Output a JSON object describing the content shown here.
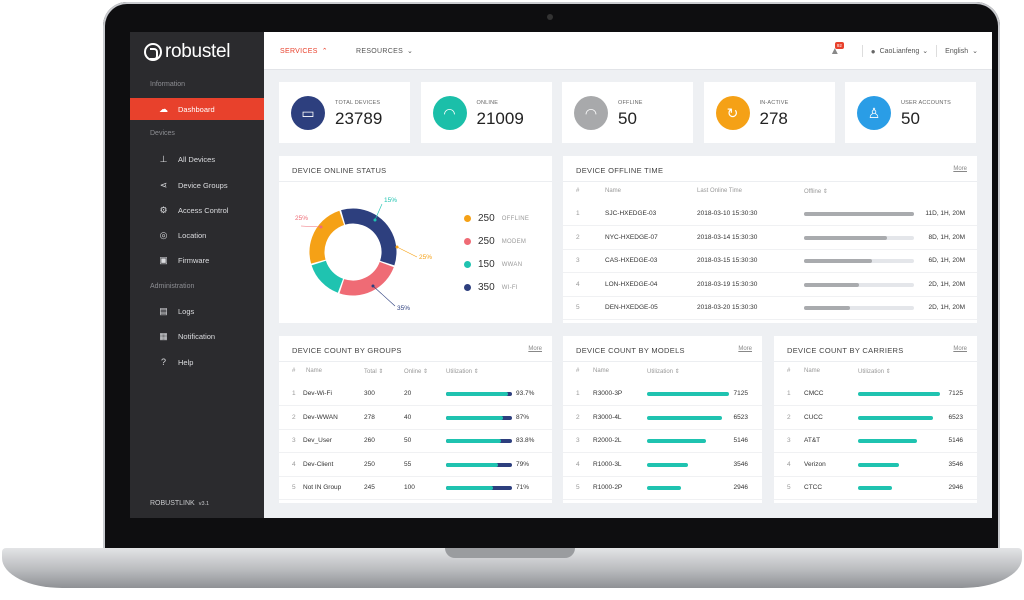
{
  "app": {
    "brand": "robustel",
    "version_name": "ROBUSTLINK",
    "version": "v3.1"
  },
  "sidebar": {
    "sections": [
      "Information",
      "Devices",
      "Administration"
    ],
    "items": [
      {
        "label": "Dashboard",
        "icon": "cloud-icon",
        "active": true
      },
      {
        "label": "All Devices",
        "icon": "device-icon"
      },
      {
        "label": "Device Groups",
        "icon": "share-icon"
      },
      {
        "label": "Access Control",
        "icon": "gear-icon"
      },
      {
        "label": "Location",
        "icon": "location-icon"
      },
      {
        "label": "Firmware",
        "icon": "image-icon"
      },
      {
        "label": "Logs",
        "icon": "document-icon"
      },
      {
        "label": "Notification",
        "icon": "notification-icon"
      },
      {
        "label": "Help",
        "icon": "help-icon"
      }
    ]
  },
  "topbar": {
    "services": "SERVICES",
    "resources": "RESOURCES",
    "badge": "92",
    "user": "CaoLianfeng",
    "language": "English"
  },
  "stats": [
    {
      "label": "TOTAL DEVICES",
      "value": "23789",
      "color": "#2d3f7e",
      "icon": "router-icon"
    },
    {
      "label": "ONLINE",
      "value": "21009",
      "color": "#1bbfa9",
      "icon": "wifi-icon"
    },
    {
      "label": "OFFLINE",
      "value": "50",
      "color": "#a8a9ab",
      "icon": "wifi-off-icon"
    },
    {
      "label": "IN-ACTIVE",
      "value": "278",
      "color": "#f5a116",
      "icon": "inactive-icon"
    },
    {
      "label": "USER ACCOUNTS",
      "value": "50",
      "color": "#2a9de6",
      "icon": "user-icon"
    }
  ],
  "online_status": {
    "title": "DEVICE ONLINE STATUS",
    "legend": [
      {
        "value": "250",
        "name": "OFFLINE",
        "color": "#f5a116"
      },
      {
        "value": "250",
        "name": "MODEM",
        "color": "#ef6b75"
      },
      {
        "value": "150",
        "name": "WWAN",
        "color": "#1fc3b0"
      },
      {
        "value": "350",
        "name": "WI-FI",
        "color": "#2d3f7e"
      }
    ],
    "callouts": [
      "15%",
      "25%",
      "25%",
      "35%"
    ]
  },
  "offline_time": {
    "title": "DEVICE OFFLINE TIME",
    "more": "More",
    "headers": [
      "#",
      "Name",
      "Last Online Time",
      "Offline"
    ],
    "rows": [
      {
        "idx": "1",
        "name": "SJC-HXEDGE-03",
        "time": "2018-03-10 15:30:30",
        "dur": "11D, 1H, 20M",
        "fill": 1.0
      },
      {
        "idx": "2",
        "name": "NYC-HXEDGE-07",
        "time": "2018-03-14 15:30:30",
        "dur": "8D, 1H, 20M",
        "fill": 0.75
      },
      {
        "idx": "3",
        "name": "CAS-HXEDGE-03",
        "time": "2018-03-15 15:30:30",
        "dur": "6D, 1H, 20M",
        "fill": 0.62
      },
      {
        "idx": "4",
        "name": "LON-HXEDGE-04",
        "time": "2018-03-19 15:30:30",
        "dur": "2D, 1H, 20M",
        "fill": 0.5
      },
      {
        "idx": "5",
        "name": "DEN-HXEDGE-05",
        "time": "2018-03-20 15:30:30",
        "dur": "2D, 1H, 20M",
        "fill": 0.42
      }
    ]
  },
  "groups": {
    "title": "DEVICE COUNT BY GROUPS",
    "more": "More",
    "headers": [
      "#",
      "Name",
      "Total",
      "Online",
      "Utilization"
    ],
    "rows": [
      {
        "idx": "1",
        "name": "Dev-Wi-Fi",
        "total": "300",
        "online": "20",
        "pct": "93.7%",
        "fill": 0.937
      },
      {
        "idx": "2",
        "name": "Dev-WWAN",
        "total": "278",
        "online": "40",
        "pct": "87%",
        "fill": 0.87
      },
      {
        "idx": "3",
        "name": "Dev_User",
        "total": "260",
        "online": "50",
        "pct": "83.8%",
        "fill": 0.838
      },
      {
        "idx": "4",
        "name": "Dev-Client",
        "total": "250",
        "online": "55",
        "pct": "79%",
        "fill": 0.79
      },
      {
        "idx": "5",
        "name": "Not IN Group",
        "total": "245",
        "online": "100",
        "pct": "71%",
        "fill": 0.71
      }
    ]
  },
  "models": {
    "title": "DEVICE COUNT BY MODELS",
    "more": "More",
    "headers": [
      "#",
      "Name",
      "Utilization"
    ],
    "rows": [
      {
        "idx": "1",
        "name": "R3000-3P",
        "value": "7125",
        "fill": 1.0
      },
      {
        "idx": "2",
        "name": "R3000-4L",
        "value": "6523",
        "fill": 0.91
      },
      {
        "idx": "3",
        "name": "R2000-2L",
        "value": "5146",
        "fill": 0.72
      },
      {
        "idx": "4",
        "name": "R1000-3L",
        "value": "3546",
        "fill": 0.5
      },
      {
        "idx": "5",
        "name": "R1000-2P",
        "value": "2946",
        "fill": 0.41
      }
    ]
  },
  "carriers": {
    "title": "DEVICE COUNT BY CARRIERS",
    "more": "More",
    "headers": [
      "#",
      "Name",
      "Utilization"
    ],
    "rows": [
      {
        "idx": "1",
        "name": "CMCC",
        "value": "7125",
        "fill": 1.0
      },
      {
        "idx": "2",
        "name": "CUCC",
        "value": "6523",
        "fill": 0.91
      },
      {
        "idx": "3",
        "name": "AT&T",
        "value": "5146",
        "fill": 0.72
      },
      {
        "idx": "4",
        "name": "Verizon",
        "value": "3546",
        "fill": 0.5
      },
      {
        "idx": "5",
        "name": "CTCC",
        "value": "2946",
        "fill": 0.41
      }
    ]
  },
  "colors": {
    "accent": "#e8412c",
    "teal": "#1fc3b0",
    "navy": "#2d3f7e",
    "grey_bar": "#a9abae"
  }
}
